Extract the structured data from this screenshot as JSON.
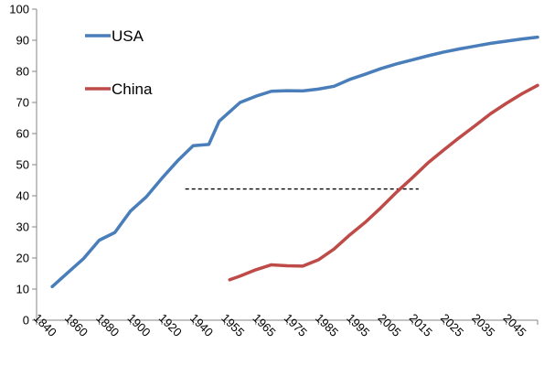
{
  "chart_data": {
    "type": "line",
    "title": "",
    "xlabel": "",
    "ylabel": "",
    "ylim": [
      0,
      100
    ],
    "y_ticks": [
      0,
      10,
      20,
      30,
      40,
      50,
      60,
      70,
      80,
      90,
      100
    ],
    "x_tick_labels": [
      "1840",
      "1860",
      "1880",
      "1900",
      "1920",
      "1940",
      "1955",
      "1965",
      "1975",
      "1985",
      "1995",
      "2005",
      "2015",
      "2025",
      "2035",
      "2045"
    ],
    "grid": false,
    "legend_position": "top-left",
    "series": [
      {
        "name": "USA",
        "color": "#4a7ebb",
        "x": [
          1840,
          1850,
          1860,
          1870,
          1880,
          1890,
          1900,
          1910,
          1920,
          1930,
          1940,
          1945,
          1950,
          1955,
          1960,
          1965,
          1970,
          1975,
          1980,
          1985,
          1990,
          1995,
          2000,
          2005,
          2010,
          2015,
          2020,
          2025,
          2030,
          2035,
          2040,
          2045,
          2050
        ],
        "values": [
          10.8,
          15.3,
          19.8,
          25.7,
          28.2,
          35.1,
          39.6,
          45.6,
          51.2,
          56.1,
          56.5,
          64.0,
          67.0,
          70.0,
          72.0,
          73.6,
          73.8,
          73.7,
          74.3,
          75.2,
          77.4,
          79.1,
          80.9,
          82.4,
          83.7,
          85.0,
          86.2,
          87.2,
          88.1,
          89.0,
          89.7,
          90.4,
          91.0
        ]
      },
      {
        "name": "China",
        "color": "#be4b48",
        "x": [
          1950,
          1955,
          1960,
          1965,
          1970,
          1975,
          1980,
          1985,
          1990,
          1995,
          2000,
          2005,
          2010,
          2015,
          2020,
          2025,
          2030,
          2035,
          2040,
          2045,
          2050
        ],
        "values": [
          13.0,
          14.2,
          16.2,
          17.8,
          17.5,
          17.4,
          19.4,
          22.9,
          27.4,
          31.5,
          36.2,
          41.2,
          45.8,
          50.6,
          54.7,
          58.7,
          62.5,
          66.4,
          69.7,
          72.8,
          75.5
        ]
      }
    ],
    "annotations": [
      {
        "type": "dashed-line",
        "y": 42.2,
        "x_start": 1925,
        "x_end": 2012,
        "color": "#000000"
      }
    ]
  }
}
